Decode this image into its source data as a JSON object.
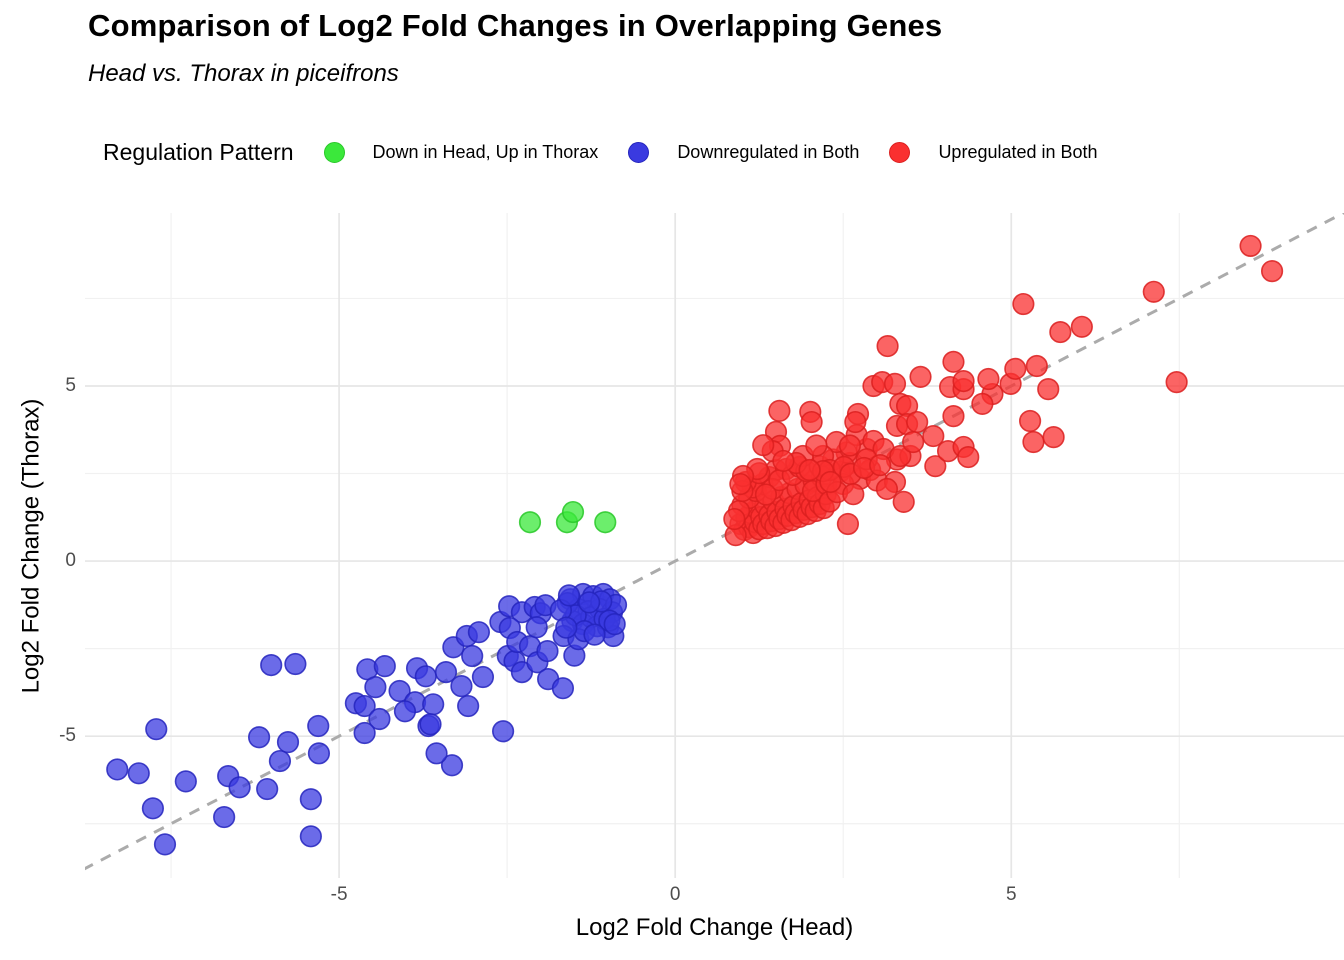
{
  "header": {
    "title": "Comparison of Log2 Fold Changes in Overlapping Genes",
    "subtitle": "Head vs. Thorax in piceifrons"
  },
  "legend": {
    "title": "Regulation Pattern",
    "items": [
      {
        "label": "Down in Head, Up in Thorax",
        "color": "#3BE83B",
        "stroke": "#28C828"
      },
      {
        "label": "Downregulated in Both",
        "color": "#3A3AE0",
        "stroke": "#2525BD"
      },
      {
        "label": "Upregulated in Both",
        "color": "#FA3030",
        "stroke": "#DB1F1F"
      }
    ]
  },
  "axes": {
    "x": {
      "label": "Log2 Fold Change (Head)",
      "ticks": [
        -5,
        0,
        5
      ],
      "minor": [
        -7.5,
        -2.5,
        2.5,
        7.5
      ]
    },
    "y": {
      "label": "Log2 Fold Change (Thorax)",
      "ticks": [
        5,
        0,
        -5
      ],
      "minor": [
        7.5,
        2.5,
        -2.5,
        -7.5
      ]
    }
  },
  "chart_data": {
    "type": "scatter",
    "title": "Comparison of Log2 Fold Changes in Overlapping Genes",
    "subtitle": "Head vs. Thorax in piceifrons",
    "xlabel": "Log2 Fold Change (Head)",
    "ylabel": "Log2 Fold Change (Thorax)",
    "xlim": [
      -8.78,
      9.95
    ],
    "ylim": [
      -9.05,
      9.94
    ],
    "grid": true,
    "legend_position": "top",
    "reference_line": {
      "type": "identity y=x",
      "style": "dashed",
      "color": "#ABABAB"
    },
    "series": [
      {
        "name": "Downregulated in Both",
        "color": "#3A3AE0",
        "stroke": "#2525BD",
        "points": [
          [
            -7.72,
            -4.8
          ],
          [
            -8.3,
            -5.95
          ],
          [
            -7.98,
            -6.06
          ],
          [
            -7.77,
            -7.06
          ],
          [
            -7.59,
            -8.09
          ],
          [
            -7.28,
            -6.29
          ],
          [
            -6.65,
            -6.14
          ],
          [
            -6.48,
            -6.46
          ],
          [
            -6.71,
            -7.31
          ],
          [
            -6.19,
            -5.03
          ],
          [
            -5.76,
            -5.17
          ],
          [
            -5.88,
            -5.71
          ],
          [
            -6.07,
            -6.51
          ],
          [
            -5.31,
            -4.71
          ],
          [
            -5.3,
            -5.49
          ],
          [
            -5.42,
            -6.8
          ],
          [
            -5.42,
            -7.86
          ],
          [
            -6.01,
            -2.97
          ],
          [
            -5.65,
            -2.94
          ],
          [
            -4.75,
            -4.06
          ],
          [
            -4.58,
            -3.09
          ],
          [
            -4.32,
            -3.0
          ],
          [
            -4.46,
            -3.6
          ],
          [
            -4.62,
            -4.14
          ],
          [
            -4.4,
            -4.51
          ],
          [
            -4.62,
            -4.91
          ],
          [
            -4.1,
            -3.71
          ],
          [
            -3.84,
            -3.06
          ],
          [
            -3.71,
            -3.29
          ],
          [
            -3.87,
            -4.03
          ],
          [
            -4.02,
            -4.29
          ],
          [
            -3.6,
            -4.09
          ],
          [
            -3.67,
            -4.71
          ],
          [
            -3.41,
            -3.17
          ],
          [
            -3.3,
            -2.46
          ],
          [
            -3.1,
            -2.14
          ],
          [
            -2.92,
            -2.03
          ],
          [
            -3.02,
            -2.71
          ],
          [
            -2.86,
            -3.31
          ],
          [
            -3.18,
            -3.57
          ],
          [
            -3.08,
            -4.14
          ],
          [
            -3.32,
            -5.83
          ],
          [
            -3.64,
            -4.66
          ],
          [
            -3.55,
            -5.49
          ],
          [
            -2.6,
            -1.74
          ],
          [
            -2.47,
            -1.29
          ],
          [
            -2.28,
            -1.46
          ],
          [
            -2.46,
            -1.91
          ],
          [
            -2.49,
            -2.71
          ],
          [
            -2.39,
            -2.86
          ],
          [
            -2.28,
            -3.17
          ],
          [
            -2.35,
            -2.31
          ],
          [
            -2.16,
            -2.43
          ],
          [
            -2.05,
            -2.89
          ],
          [
            -2.09,
            -1.31
          ],
          [
            -2.0,
            -1.49
          ],
          [
            -2.06,
            -1.89
          ],
          [
            -1.93,
            -1.26
          ],
          [
            -1.9,
            -2.57
          ],
          [
            -1.89,
            -3.37
          ],
          [
            -1.67,
            -3.63
          ],
          [
            -2.56,
            -4.86
          ],
          [
            -1.5,
            -2.7
          ],
          [
            -1.56,
            -1.09
          ],
          [
            -1.37,
            -0.94
          ],
          [
            -1.22,
            -1.0
          ],
          [
            -1.07,
            -0.94
          ],
          [
            -0.97,
            -1.09
          ],
          [
            -1.44,
            -1.37
          ],
          [
            -1.29,
            -1.43
          ],
          [
            -1.12,
            -1.37
          ],
          [
            -0.94,
            -1.46
          ],
          [
            -1.53,
            -1.71
          ],
          [
            -1.37,
            -1.8
          ],
          [
            -1.16,
            -1.86
          ],
          [
            -1.0,
            -1.89
          ],
          [
            -0.92,
            -2.14
          ],
          [
            -1.66,
            -2.14
          ],
          [
            -1.44,
            -2.23
          ],
          [
            -1.6,
            -1.2
          ],
          [
            -1.25,
            -1.6
          ],
          [
            -1.05,
            -1.65
          ],
          [
            -1.48,
            -1.55
          ],
          [
            -0.88,
            -1.25
          ],
          [
            -1.7,
            -1.4
          ],
          [
            -1.35,
            -2.0
          ],
          [
            -0.98,
            -1.7
          ],
          [
            -1.62,
            -1.9
          ],
          [
            -1.2,
            -2.1
          ],
          [
            -1.58,
            -0.98
          ],
          [
            -1.1,
            -1.15
          ],
          [
            -0.9,
            -1.8
          ],
          [
            -1.28,
            -1.18
          ]
        ]
      },
      {
        "name": "Upregulated in Both",
        "color": "#FA3030",
        "stroke": "#DB1F1F",
        "points": [
          [
            0.97,
            1.06
          ],
          [
            1.03,
            0.89
          ],
          [
            1.06,
            1.23
          ],
          [
            1.1,
            0.97
          ],
          [
            1.13,
            1.37
          ],
          [
            1.16,
            0.8
          ],
          [
            1.19,
            1.11
          ],
          [
            1.22,
            1.49
          ],
          [
            1.25,
            0.91
          ],
          [
            1.28,
            1.26
          ],
          [
            1.31,
            1.06
          ],
          [
            1.34,
            1.6
          ],
          [
            1.37,
            0.94
          ],
          [
            1.4,
            1.31
          ],
          [
            1.43,
            1.14
          ],
          [
            1.46,
            1.71
          ],
          [
            1.49,
            1.0
          ],
          [
            1.52,
            1.4
          ],
          [
            1.55,
            1.2
          ],
          [
            1.58,
            1.83
          ],
          [
            1.61,
            1.09
          ],
          [
            1.64,
            1.49
          ],
          [
            1.67,
            1.29
          ],
          [
            1.7,
            1.94
          ],
          [
            1.73,
            1.17
          ],
          [
            1.76,
            1.57
          ],
          [
            1.79,
            1.37
          ],
          [
            1.82,
            2.06
          ],
          [
            1.85,
            1.26
          ],
          [
            1.88,
            1.66
          ],
          [
            1.91,
            1.46
          ],
          [
            1.94,
            2.17
          ],
          [
            1.97,
            1.34
          ],
          [
            2.0,
            1.74
          ],
          [
            2.03,
            1.54
          ],
          [
            2.06,
            2.29
          ],
          [
            2.09,
            1.43
          ],
          [
            2.12,
            1.83
          ],
          [
            2.15,
            1.63
          ],
          [
            2.18,
            2.4
          ],
          [
            2.21,
            1.51
          ],
          [
            2.24,
            1.91
          ],
          [
            0.9,
            0.74
          ],
          [
            1.0,
            1.6
          ],
          [
            1.1,
            1.8
          ],
          [
            1.2,
            2.0
          ],
          [
            1.3,
            2.2
          ],
          [
            1.4,
            2.4
          ],
          [
            1.5,
            2.6
          ],
          [
            1.15,
            2.1
          ],
          [
            0.95,
            1.43
          ],
          [
            1.05,
            2.26
          ],
          [
            1.25,
            2.51
          ],
          [
            1.45,
            2.06
          ],
          [
            1.65,
            2.63
          ],
          [
            1.55,
            2.31
          ],
          [
            1.35,
            1.9
          ],
          [
            1.75,
            2.46
          ],
          [
            1.85,
            2.69
          ],
          [
            1.95,
            2.57
          ],
          [
            2.05,
            2.0
          ],
          [
            2.15,
            2.71
          ],
          [
            1.0,
            2.0
          ],
          [
            0.88,
            1.2
          ],
          [
            2.25,
            2.2
          ],
          [
            2.3,
            1.7
          ],
          [
            3.3,
            2.9
          ],
          [
            3.5,
            3.0
          ],
          [
            2.85,
            3.2
          ],
          [
            2.6,
            2.8
          ],
          [
            2.45,
            2.55
          ],
          [
            2.55,
            3.1
          ],
          [
            2.35,
            2.9
          ],
          [
            2.75,
            2.35
          ],
          [
            2.9,
            2.6
          ],
          [
            2.4,
            3.4
          ],
          [
            2.2,
            3.0
          ],
          [
            2.5,
            2.2
          ],
          [
            2.7,
            3.6
          ],
          [
            2.3,
            2.6
          ],
          [
            2.6,
            3.3
          ],
          [
            2.95,
            3.43
          ],
          [
            3.1,
            3.2
          ],
          [
            2.85,
            2.91
          ],
          [
            3.0,
            2.3
          ],
          [
            2.2,
            2.57
          ],
          [
            2.41,
            1.97
          ],
          [
            2.51,
            2.69
          ],
          [
            2.31,
            2.26
          ],
          [
            2.61,
            2.49
          ],
          [
            2.81,
            2.66
          ],
          [
            3.05,
            2.74
          ],
          [
            1.9,
            3.0
          ],
          [
            2.1,
            3.3
          ],
          [
            1.8,
            2.8
          ],
          [
            2.0,
            2.6
          ],
          [
            1.55,
            4.29
          ],
          [
            2.01,
            4.26
          ],
          [
            2.03,
            3.97
          ],
          [
            1.5,
            3.69
          ],
          [
            1.56,
            3.29
          ],
          [
            1.45,
            3.14
          ],
          [
            1.61,
            2.86
          ],
          [
            1.31,
            3.31
          ],
          [
            1.22,
            2.63
          ],
          [
            1.01,
            2.43
          ],
          [
            0.97,
            2.2
          ],
          [
            2.72,
            4.2
          ],
          [
            2.68,
            3.97
          ],
          [
            2.95,
            5.0
          ],
          [
            3.08,
            5.11
          ],
          [
            3.35,
            4.49
          ],
          [
            3.45,
            4.43
          ],
          [
            3.3,
            3.86
          ],
          [
            3.45,
            3.91
          ],
          [
            3.6,
            3.97
          ],
          [
            3.35,
            3.0
          ],
          [
            3.54,
            3.4
          ],
          [
            3.84,
            3.57
          ],
          [
            4.09,
            4.97
          ],
          [
            4.29,
            4.91
          ],
          [
            4.72,
            4.77
          ],
          [
            4.99,
            5.06
          ],
          [
            5.55,
            4.91
          ],
          [
            4.14,
            4.14
          ],
          [
            4.57,
            4.49
          ],
          [
            3.87,
            2.71
          ],
          [
            4.06,
            3.14
          ],
          [
            4.29,
            3.26
          ],
          [
            4.36,
            2.97
          ],
          [
            5.28,
            4.0
          ],
          [
            5.33,
            3.4
          ],
          [
            5.63,
            3.54
          ],
          [
            3.27,
            2.26
          ],
          [
            3.4,
            1.69
          ],
          [
            3.15,
            2.06
          ],
          [
            2.65,
            1.91
          ],
          [
            2.57,
            1.06
          ],
          [
            3.16,
            6.14
          ],
          [
            5.18,
            7.34
          ],
          [
            5.73,
            6.54
          ],
          [
            6.05,
            6.69
          ],
          [
            7.12,
            7.69
          ],
          [
            7.46,
            5.11
          ],
          [
            4.14,
            5.69
          ],
          [
            5.38,
            5.57
          ],
          [
            3.27,
            5.06
          ],
          [
            3.65,
            5.26
          ],
          [
            4.29,
            5.14
          ],
          [
            4.66,
            5.2
          ],
          [
            5.06,
            5.49
          ],
          [
            8.56,
            9.0
          ],
          [
            8.88,
            8.28
          ]
        ]
      },
      {
        "name": "Down in Head, Up in Thorax",
        "color": "#3BE83B",
        "stroke": "#28C828",
        "points": [
          [
            -2.16,
            1.11
          ],
          [
            -1.61,
            1.11
          ],
          [
            -1.52,
            1.4
          ],
          [
            -1.04,
            1.11
          ]
        ]
      }
    ]
  }
}
